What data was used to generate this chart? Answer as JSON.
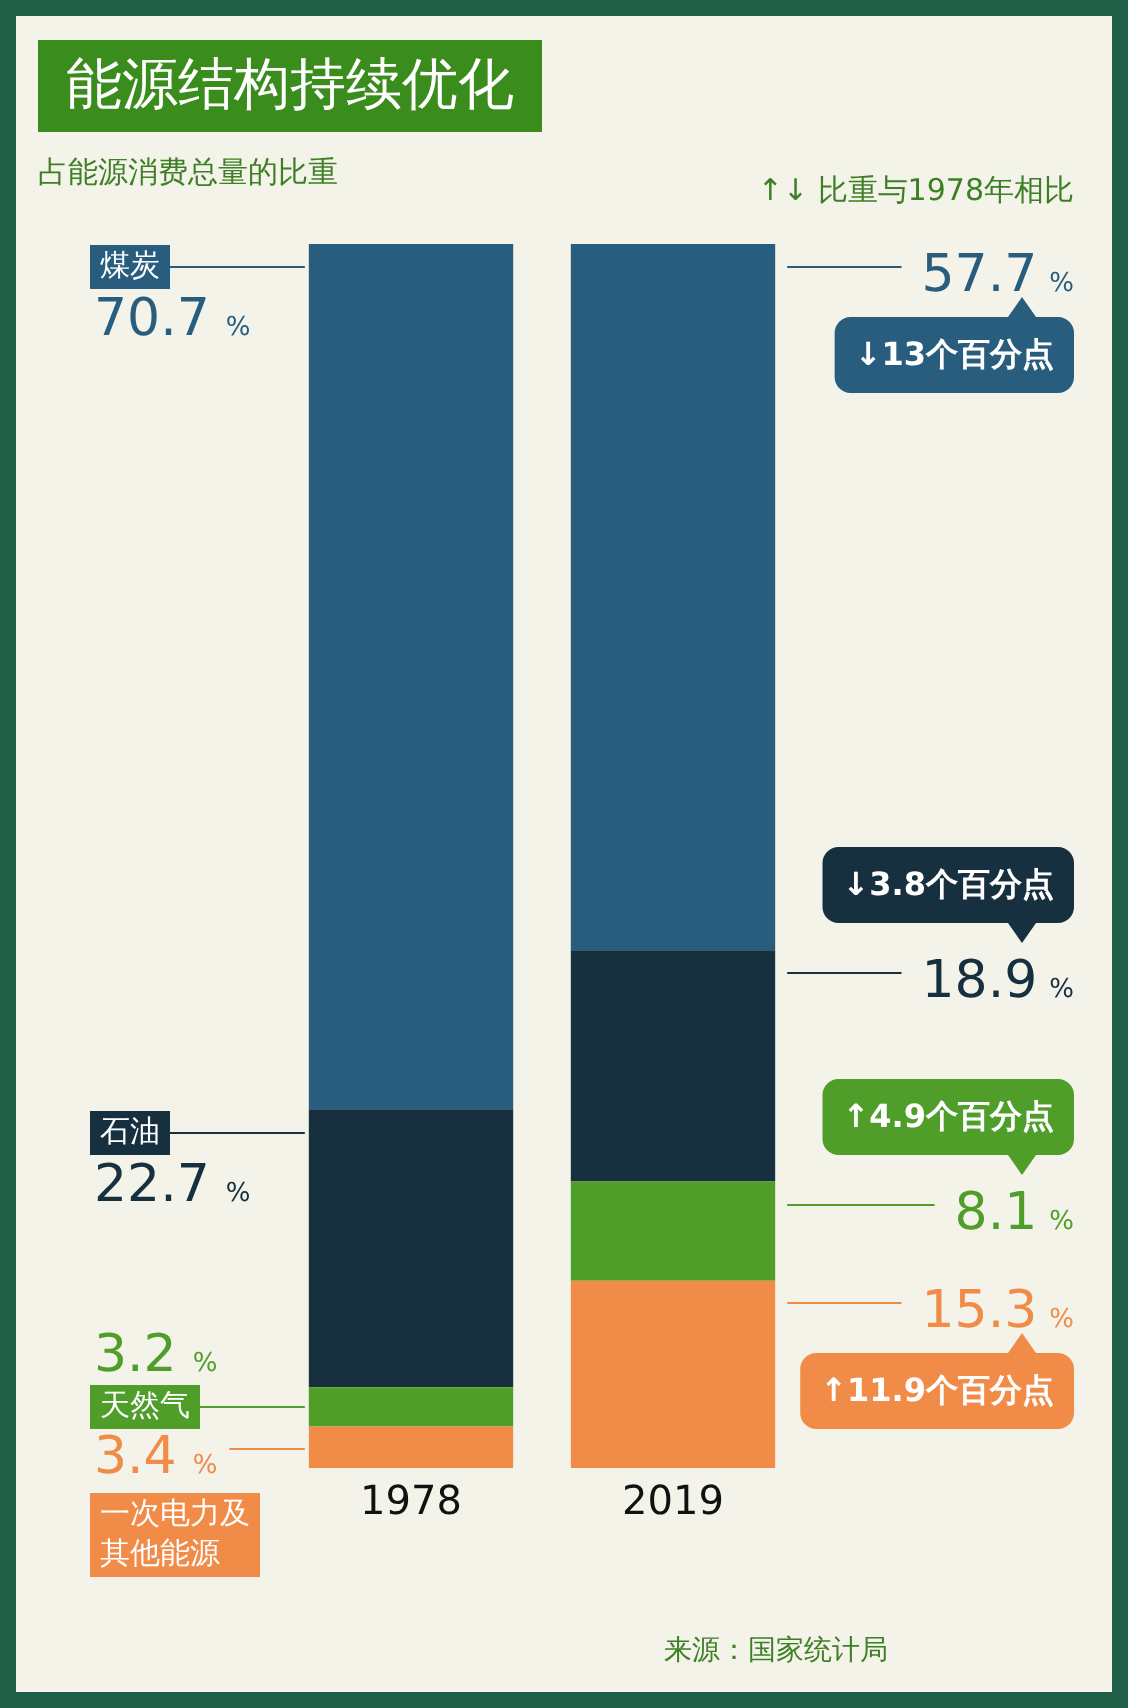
{
  "chart_data": {
    "type": "bar",
    "title": "能源结构持续优化",
    "subtitle": "占能源消费总量的比重",
    "categories": [
      "1978",
      "2019"
    ],
    "stacked": true,
    "series": [
      {
        "name": "一次电力及其他能源",
        "color": "#f08c48",
        "values": [
          3.4,
          15.3
        ],
        "value_labels": [
          "3.4 %",
          "15.3 %"
        ]
      },
      {
        "name": "天然气",
        "color": "#4f9e2a",
        "values": [
          3.2,
          8.1
        ],
        "value_labels": [
          "3.2 %",
          "8.1 %"
        ]
      },
      {
        "name": "石油",
        "color": "#17303f",
        "values": [
          22.7,
          18.9
        ],
        "value_labels": [
          "22.7 %",
          "18.9 %"
        ]
      },
      {
        "name": "煤炭",
        "color": "#285d7e",
        "values": [
          70.7,
          57.7
        ],
        "value_labels": [
          "70.7 %",
          "57.7 %"
        ]
      }
    ],
    "annotations": [
      "↑↓ 比重与1978年相比",
      "↓13个百分点",
      "↓3.8个百分点",
      "↑4.9个百分点",
      "↑11.9个百分点",
      "来源：国家统计局"
    ]
  }
}
